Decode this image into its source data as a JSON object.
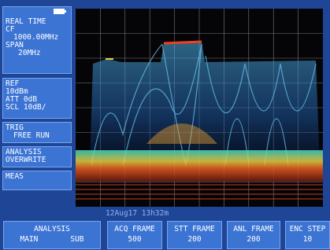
{
  "left_panel": [
    {
      "lines": [
        "REAL TIME",
        "CF",
        "1000.00MHz",
        "SPAN",
        "20MHz"
      ]
    },
    {
      "lines": [
        "REF",
        "10dBm",
        "ATT 0dB",
        "SCL 10dB/"
      ]
    },
    {
      "lines": [
        "TRIG",
        "FREE RUN"
      ]
    },
    {
      "lines": [
        "ANALYSIS",
        "OVERWRITE"
      ]
    },
    {
      "lines": [
        "MEAS"
      ]
    }
  ],
  "timestamp": "12Aug17 13h32m",
  "softkeys": [
    {
      "label": "ANALYSIS",
      "options": [
        "MAIN",
        "SUB"
      ]
    },
    {
      "label": "ACQ FRAME",
      "value": "500"
    },
    {
      "label": "STT FRAME",
      "value": "200"
    },
    {
      "label": "ANL FRAME",
      "value": "200"
    },
    {
      "label": "ENC STEP",
      "value": "10"
    }
  ]
}
